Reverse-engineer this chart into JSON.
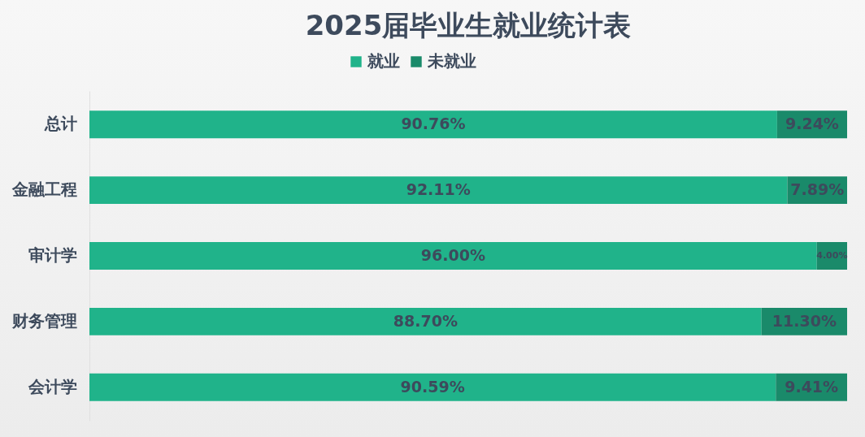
{
  "chart_data": {
    "type": "bar",
    "orientation": "horizontal",
    "stacked": true,
    "tick_labels": "y",
    "title": "2025届毕业生就业统计表",
    "categories": [
      "总计",
      "金融工程",
      "审计学",
      "财务管理",
      "会计学"
    ],
    "legend": "top",
    "data_labels": true,
    "series": [
      {
        "name": "就业",
        "color": "#20b38a",
        "values": [
          90.76,
          92.11,
          96.0,
          88.7,
          90.59
        ],
        "value_labels": [
          "90.76%",
          "92.11%",
          "96.00%",
          "88.70%",
          "90.59%"
        ]
      },
      {
        "name": "未就业",
        "color": "#1a8a6a",
        "values": [
          9.24,
          7.89,
          4.0,
          11.3,
          9.41
        ],
        "value_labels": [
          "9.24%",
          "7.89%",
          "4.00%",
          "11.30%",
          "9.41%"
        ]
      }
    ]
  }
}
